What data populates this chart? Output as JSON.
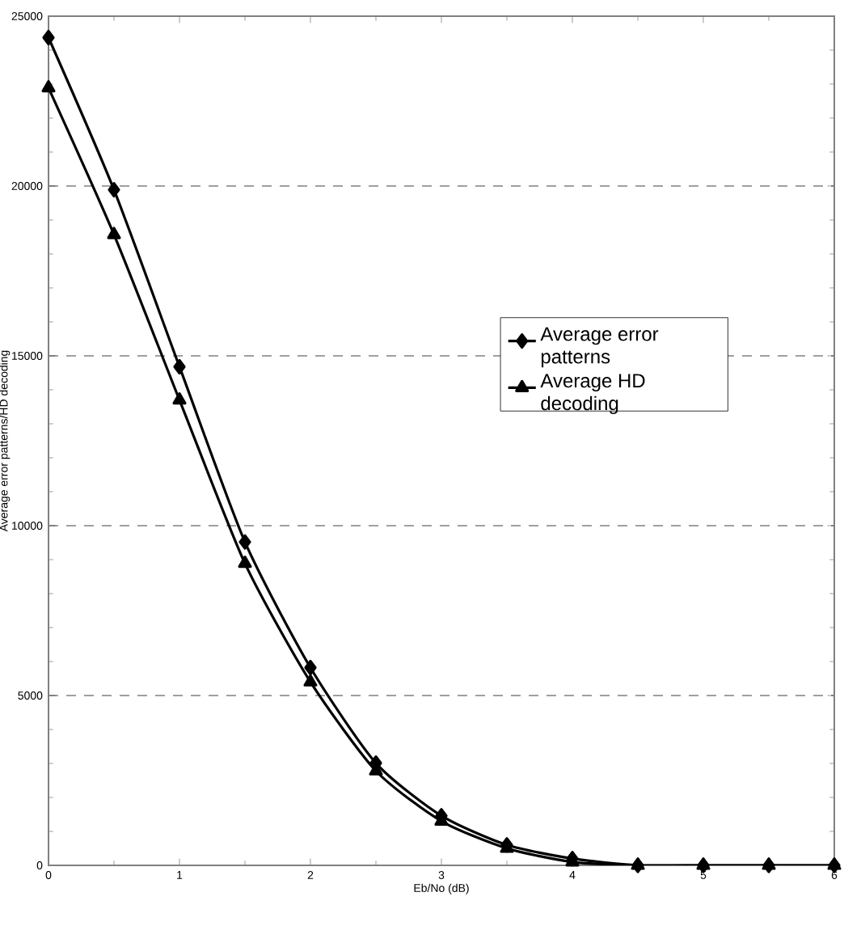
{
  "chart_data": {
    "type": "line",
    "xlabel": "Eb/No (dB)",
    "ylabel": "Average error patterns/HD decoding",
    "x": [
      0,
      0.5,
      1,
      1.5,
      2,
      2.5,
      3,
      3.5,
      4,
      4.5,
      5,
      5.5,
      6
    ],
    "series": [
      {
        "name": "Average error patterns",
        "color": "#000000",
        "marker": "diamond",
        "values": [
          24370,
          19890,
          14680,
          9520,
          5820,
          3010,
          1460,
          600,
          200,
          0,
          0,
          0,
          0
        ]
      },
      {
        "name": "Average HD decoding",
        "color": "#000000",
        "marker": "triangle",
        "values": [
          22890,
          18570,
          13700,
          8890,
          5400,
          2780,
          1300,
          500,
          100,
          0,
          0,
          0,
          0
        ]
      }
    ],
    "xlim": [
      0,
      6
    ],
    "xticks": [
      0,
      1,
      2,
      3,
      4,
      5,
      6
    ],
    "ylim": [
      0,
      25000
    ],
    "yticks": [
      0,
      5000,
      10000,
      15000,
      20000,
      25000
    ],
    "grid": "y",
    "legend": "right",
    "line_style": "solid"
  }
}
